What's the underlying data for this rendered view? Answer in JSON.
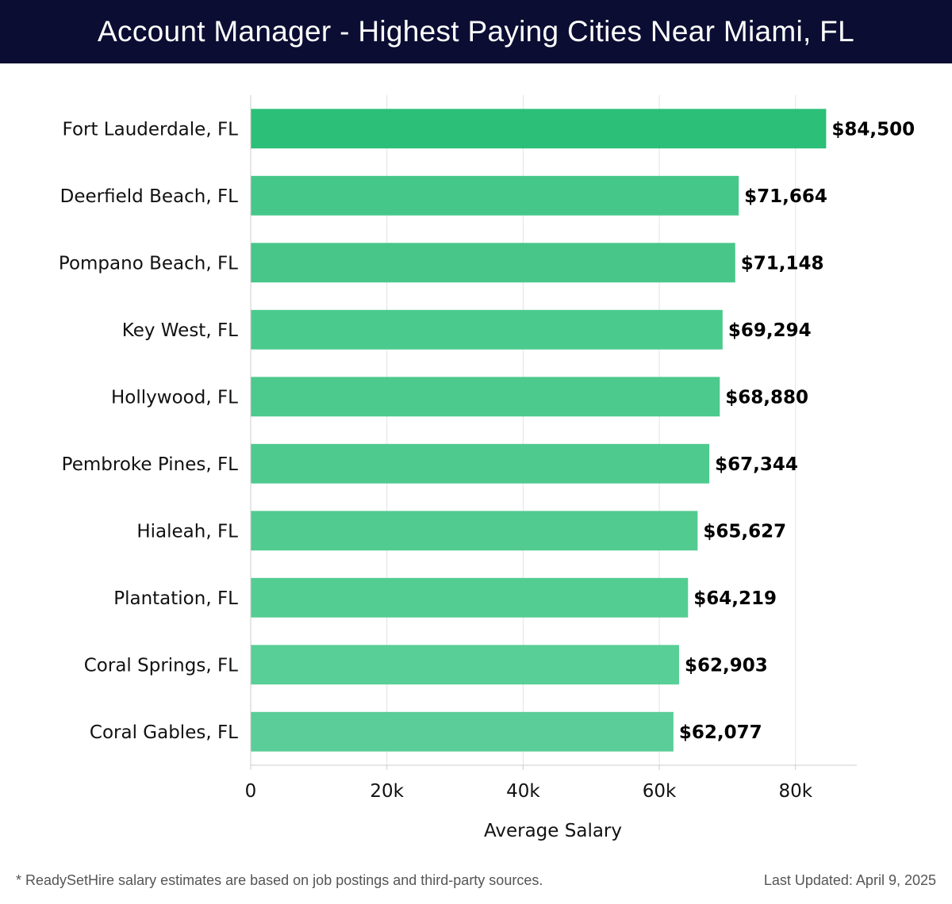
{
  "header": {
    "title": "Account Manager - Highest Paying Cities Near Miami, FL"
  },
  "footer": {
    "note": "* ReadySetHire salary estimates are based on job postings and third-party sources.",
    "updated": "Last Updated: April 9, 2025"
  },
  "chart_data": {
    "type": "bar",
    "orientation": "horizontal",
    "title": "Account Manager - Highest Paying Cities Near Miami, FL",
    "xlabel": "Average Salary",
    "ylabel": "",
    "xlim": [
      0,
      89000
    ],
    "xticks": [
      0,
      20000,
      40000,
      60000,
      80000
    ],
    "xtick_labels": [
      "0",
      "20k",
      "40k",
      "60k",
      "80k"
    ],
    "grid": true,
    "categories": [
      "Fort Lauderdale, FL",
      "Deerfield Beach, FL",
      "Pompano Beach, FL",
      "Key West, FL",
      "Hollywood, FL",
      "Pembroke Pines, FL",
      "Hialeah, FL",
      "Plantation, FL",
      "Coral Springs, FL",
      "Coral Gables, FL"
    ],
    "values": [
      84500,
      71664,
      71148,
      69294,
      68880,
      67344,
      65627,
      64219,
      62903,
      62077
    ],
    "value_labels": [
      "$84,500",
      "$71,664",
      "$71,148",
      "$69,294",
      "$68,880",
      "$67,344",
      "$65,627",
      "$64,219",
      "$62,903",
      "$62,077"
    ],
    "colors": [
      "#2bbf77",
      "#45c78a",
      "#48c68a",
      "#4bca8d",
      "#4cc98c",
      "#4fca8f",
      "#52cb91",
      "#54cd93",
      "#58cf96",
      "#5acd98"
    ],
    "grid_color": "#e2e2e2",
    "axis_color": "#cccccc"
  }
}
